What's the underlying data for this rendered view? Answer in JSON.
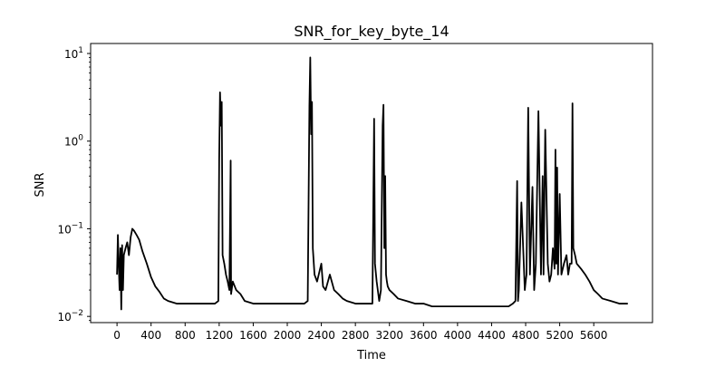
{
  "chart_data": {
    "type": "line",
    "title": "SNR_for_key_byte_14",
    "xlabel": "Time",
    "ylabel": "SNR",
    "xlim": [
      -310,
      6290
    ],
    "ylim": [
      0.0085,
      13
    ],
    "yscale": "log",
    "grid": false,
    "legend": "none",
    "line_color": "#000000",
    "xticks": [
      0,
      400,
      800,
      1200,
      1600,
      2000,
      2400,
      2800,
      3200,
      3600,
      4000,
      4400,
      4800,
      5200,
      5600
    ],
    "xtick_labels": [
      "0",
      "400",
      "800",
      "1200",
      "1600",
      "2000",
      "2400",
      "2800",
      "3200",
      "3600",
      "4000",
      "4400",
      "4800",
      "5200",
      "5600"
    ],
    "yticks": [
      0.01,
      0.1,
      1,
      10
    ],
    "ytick_labels": [
      {
        "base": "10",
        "exp": "−2"
      },
      {
        "base": "10",
        "exp": "−1"
      },
      {
        "base": "10",
        "exp": "0"
      },
      {
        "base": "10",
        "exp": "1"
      }
    ],
    "series": [
      {
        "x": [
          0,
          10,
          20,
          30,
          40,
          50,
          60,
          70,
          80,
          100,
          120,
          140,
          160,
          180,
          200,
          230,
          260,
          300,
          350,
          400,
          450,
          500,
          550,
          600,
          700,
          800,
          900,
          1000,
          1100,
          1150,
          1190,
          1200,
          1210,
          1220,
          1230,
          1240,
          1260,
          1280,
          1300,
          1320,
          1335,
          1340,
          1360,
          1400,
          1450,
          1500,
          1600,
          1700,
          1800,
          1900,
          2000,
          2100,
          2200,
          2240,
          2260,
          2270,
          2280,
          2290,
          2300,
          2320,
          2350,
          2400,
          2420,
          2450,
          2500,
          2550,
          2600,
          2650,
          2700,
          2800,
          2900,
          3000,
          3020,
          3030,
          3050,
          3080,
          3100,
          3120,
          3130,
          3140,
          3150,
          3160,
          3170,
          3180,
          3200,
          3250,
          3300,
          3400,
          3500,
          3600,
          3700,
          3800,
          3900,
          4000,
          4100,
          4200,
          4300,
          4400,
          4500,
          4600,
          4650,
          4680,
          4700,
          4710,
          4720,
          4750,
          4790,
          4800,
          4810,
          4830,
          4850,
          4880,
          4900,
          4920,
          4950,
          4980,
          5000,
          5010,
          5030,
          5060,
          5080,
          5100,
          5120,
          5140,
          5150,
          5160,
          5170,
          5180,
          5200,
          5220,
          5250,
          5280,
          5300,
          5320,
          5340,
          5350,
          5360,
          5380,
          5400,
          5450,
          5500,
          5550,
          5600,
          5650,
          5700,
          5800,
          5900,
          6000
        ],
        "y": [
          0.03,
          0.085,
          0.04,
          0.02,
          0.06,
          0.012,
          0.065,
          0.02,
          0.05,
          0.06,
          0.07,
          0.05,
          0.08,
          0.1,
          0.095,
          0.085,
          0.075,
          0.055,
          0.04,
          0.028,
          0.022,
          0.019,
          0.016,
          0.015,
          0.014,
          0.014,
          0.014,
          0.014,
          0.014,
          0.014,
          0.015,
          0.6,
          3.6,
          1.5,
          2.8,
          0.05,
          0.04,
          0.03,
          0.025,
          0.02,
          0.6,
          0.018,
          0.025,
          0.02,
          0.018,
          0.015,
          0.014,
          0.014,
          0.014,
          0.014,
          0.014,
          0.014,
          0.014,
          0.015,
          2.5,
          9.0,
          1.2,
          2.8,
          0.06,
          0.03,
          0.025,
          0.04,
          0.022,
          0.02,
          0.03,
          0.02,
          0.018,
          0.016,
          0.015,
          0.014,
          0.014,
          0.014,
          1.8,
          0.04,
          0.025,
          0.015,
          0.02,
          1.5,
          2.6,
          0.06,
          0.4,
          0.03,
          0.025,
          0.022,
          0.02,
          0.018,
          0.016,
          0.015,
          0.014,
          0.014,
          0.013,
          0.013,
          0.013,
          0.013,
          0.013,
          0.013,
          0.013,
          0.013,
          0.013,
          0.013,
          0.014,
          0.015,
          0.35,
          0.015,
          0.02,
          0.2,
          0.02,
          0.025,
          0.03,
          2.4,
          0.03,
          0.3,
          0.02,
          0.04,
          2.2,
          0.03,
          0.4,
          0.03,
          1.35,
          0.04,
          0.025,
          0.03,
          0.06,
          0.035,
          0.8,
          0.04,
          0.5,
          0.03,
          0.25,
          0.03,
          0.04,
          0.05,
          0.03,
          0.04,
          0.04,
          2.7,
          0.06,
          0.05,
          0.04,
          0.035,
          0.03,
          0.025,
          0.02,
          0.018,
          0.016,
          0.015,
          0.014,
          0.014
        ]
      }
    ]
  }
}
